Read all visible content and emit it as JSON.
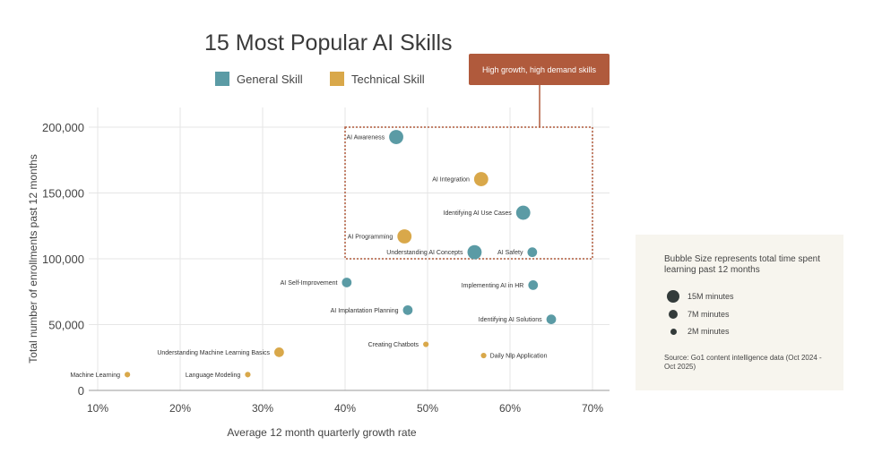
{
  "chart_data": {
    "type": "scatter",
    "title": "15 Most Popular AI Skills",
    "xlabel": "Average 12 month quarterly growth rate",
    "ylabel": "Total number of enrollments past 12 months",
    "xlim": [
      10,
      70
    ],
    "ylim": [
      0,
      200000
    ],
    "x_ticks": [
      "10%",
      "20%",
      "30%",
      "40%",
      "50%",
      "60%",
      "70%"
    ],
    "y_ticks": [
      "0",
      "50,000",
      "100,000",
      "150,000",
      "200,000"
    ],
    "grid": true,
    "legend": [
      {
        "name": "General Skill",
        "color": "#5b9ba5"
      },
      {
        "name": "Technical Skill",
        "color": "#d9a84a"
      }
    ],
    "legend_placement": "top",
    "points": [
      {
        "label": "AI Awareness",
        "type": "General Skill",
        "x": 46.2,
        "y": 192500,
        "minutes_m": 13
      },
      {
        "label": "AI Integration",
        "type": "Technical Skill",
        "x": 56.5,
        "y": 160500,
        "minutes_m": 13
      },
      {
        "label": "Identifying AI Use Cases",
        "type": "General Skill",
        "x": 61.6,
        "y": 135000,
        "minutes_m": 13
      },
      {
        "label": "AI Programming",
        "type": "Technical Skill",
        "x": 47.2,
        "y": 117000,
        "minutes_m": 13
      },
      {
        "label": "Understanding AI Concepts",
        "type": "General Skill",
        "x": 55.7,
        "y": 105000,
        "minutes_m": 13
      },
      {
        "label": "AI Safety",
        "type": "General Skill",
        "x": 62.7,
        "y": 105000,
        "minutes_m": 6
      },
      {
        "label": "AI Self-Improvement",
        "type": "General Skill",
        "x": 40.2,
        "y": 82000,
        "minutes_m": 6
      },
      {
        "label": "Implementing AI in HR",
        "type": "General Skill",
        "x": 62.8,
        "y": 80000,
        "minutes_m": 6
      },
      {
        "label": "AI Implantation Planning",
        "type": "General Skill",
        "x": 47.6,
        "y": 61000,
        "minutes_m": 6
      },
      {
        "label": "Identifying AI Solutions",
        "type": "General Skill",
        "x": 65.0,
        "y": 54000,
        "minutes_m": 6
      },
      {
        "label": "Creating Chatbots",
        "type": "Technical Skill",
        "x": 49.8,
        "y": 35000,
        "minutes_m": 2
      },
      {
        "label": "Understanding Machine Learning Basics",
        "type": "Technical Skill",
        "x": 32.0,
        "y": 29000,
        "minutes_m": 6
      },
      {
        "label": "Daily Nlp Application",
        "type": "Technical Skill",
        "x": 56.8,
        "y": 26500,
        "minutes_m": 2,
        "label_side": "right"
      },
      {
        "label": "Machine Learning",
        "type": "Technical Skill",
        "x": 13.6,
        "y": 12000,
        "minutes_m": 2
      },
      {
        "label": "Language Modeling",
        "type": "Technical Skill",
        "x": 28.2,
        "y": 12000,
        "minutes_m": 2
      }
    ],
    "highlight_region": {
      "label": "High growth, high demand skills",
      "x": [
        40,
        70
      ],
      "y": [
        100000,
        200000
      ],
      "color": "#b05a3c"
    }
  },
  "size_legend": {
    "title": "Bubble Size represents total time spent learning past 12 months",
    "items": [
      {
        "label": "15M minutes",
        "minutes_m": 15
      },
      {
        "label": "7M minutes",
        "minutes_m": 7
      },
      {
        "label": "2M minutes",
        "minutes_m": 2
      }
    ],
    "source": "Source: Go1 content intelligence data (Oct 2024 - Oct 2025)"
  }
}
